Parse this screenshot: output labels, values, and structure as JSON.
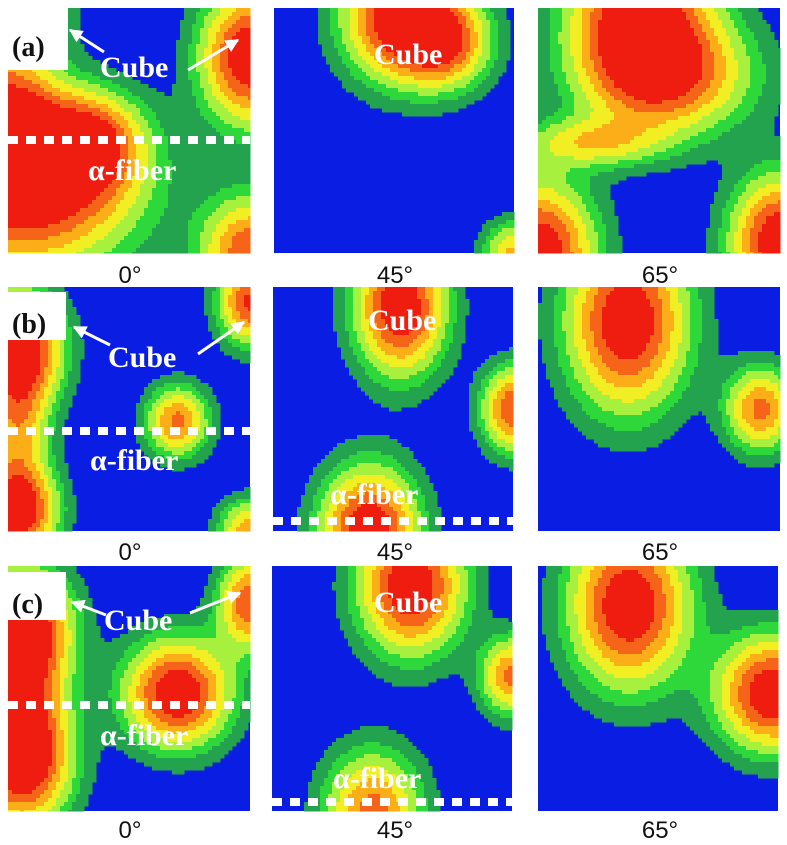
{
  "chart_data": {
    "type": "heatmap",
    "colormap": [
      "#0a1de3",
      "#23a34e",
      "#2fd83a",
      "#a7f03d",
      "#f2ee24",
      "#fbae18",
      "#f6641a",
      "#ef1c10"
    ],
    "rows": [
      {
        "label": "(a)",
        "cube_label": "Cube",
        "fiber_label": "α-fiber",
        "sections": [
          {
            "angle": "0°",
            "peaks": [
              {
                "cx": 0.05,
                "cy": 0.76,
                "sx": 0.32,
                "sy": 0.22,
                "amp": 1.0
              },
              {
                "cx": 0.32,
                "cy": 0.55,
                "sx": 0.16,
                "sy": 0.14,
                "amp": 0.82
              },
              {
                "cx": 0.0,
                "cy": 0.4,
                "sx": 0.14,
                "sy": 0.14,
                "amp": 0.7
              },
              {
                "cx": 0.0,
                "cy": 0.0,
                "sx": 0.16,
                "sy": 0.16,
                "amp": 0.55
              },
              {
                "cx": 1.0,
                "cy": 0.2,
                "sx": 0.14,
                "sy": 0.19,
                "amp": 1.0
              },
              {
                "cx": 1.0,
                "cy": 1.0,
                "sx": 0.14,
                "sy": 0.16,
                "amp": 0.8
              }
            ]
          },
          {
            "angle": "45°",
            "peaks": [
              {
                "cx": 0.52,
                "cy": 0.03,
                "sx": 0.16,
                "sy": 0.18,
                "amp": 1.0
              },
              {
                "cx": 0.72,
                "cy": 0.14,
                "sx": 0.13,
                "sy": 0.13,
                "amp": 0.7
              },
              {
                "cx": 1.0,
                "cy": 1.0,
                "sx": 0.09,
                "sy": 0.09,
                "amp": 0.58
              }
            ]
          },
          {
            "angle": "65°",
            "peaks": [
              {
                "cx": 0.42,
                "cy": 0.02,
                "sx": 0.2,
                "sy": 0.24,
                "amp": 1.0
              },
              {
                "cx": 0.55,
                "cy": 0.28,
                "sx": 0.24,
                "sy": 0.16,
                "amp": 0.66
              },
              {
                "cx": 0.22,
                "cy": 0.55,
                "sx": 0.2,
                "sy": 0.07,
                "amp": 0.45
              },
              {
                "cx": 0.0,
                "cy": 1.0,
                "sx": 0.16,
                "sy": 0.2,
                "amp": 1.0
              },
              {
                "cx": 1.0,
                "cy": 0.95,
                "sx": 0.14,
                "sy": 0.18,
                "amp": 1.0
              }
            ]
          }
        ]
      },
      {
        "label": "(b)",
        "cube_label": "Cube",
        "fiber_label": "α-fiber",
        "sections": [
          {
            "angle": "0°",
            "peaks": [
              {
                "cx": 0.05,
                "cy": 0.25,
                "sx": 0.12,
                "sy": 0.16,
                "amp": 1.0
              },
              {
                "cx": 0.04,
                "cy": 0.92,
                "sx": 0.11,
                "sy": 0.13,
                "amp": 1.0
              },
              {
                "cx": 0.04,
                "cy": 0.58,
                "sx": 0.09,
                "sy": 0.18,
                "amp": 0.52
              },
              {
                "cx": 0.7,
                "cy": 0.55,
                "sx": 0.09,
                "sy": 0.1,
                "amp": 0.72
              },
              {
                "cx": 1.0,
                "cy": 0.06,
                "sx": 0.09,
                "sy": 0.12,
                "amp": 0.85
              },
              {
                "cx": 1.0,
                "cy": 1.0,
                "sx": 0.09,
                "sy": 0.09,
                "amp": 0.65
              }
            ]
          },
          {
            "angle": "45°",
            "peaks": [
              {
                "cx": 0.53,
                "cy": 0.08,
                "sx": 0.13,
                "sy": 0.19,
                "amp": 1.0
              },
              {
                "cx": 0.4,
                "cy": 1.0,
                "sx": 0.14,
                "sy": 0.18,
                "amp": 1.0
              },
              {
                "cx": 1.0,
                "cy": 0.5,
                "sx": 0.09,
                "sy": 0.12,
                "amp": 0.82
              }
            ]
          },
          {
            "angle": "65°",
            "peaks": [
              {
                "cx": 0.37,
                "cy": 0.14,
                "sx": 0.17,
                "sy": 0.25,
                "amp": 1.0
              },
              {
                "cx": 0.92,
                "cy": 0.5,
                "sx": 0.1,
                "sy": 0.12,
                "amp": 0.72
              }
            ]
          }
        ]
      },
      {
        "label": "(c)",
        "cube_label": "Cube",
        "fiber_label": "α-fiber",
        "sections": [
          {
            "angle": "0°",
            "peaks": [
              {
                "cx": 0.06,
                "cy": 0.25,
                "sx": 0.14,
                "sy": 0.16,
                "amp": 0.85
              },
              {
                "cx": 0.06,
                "cy": 0.8,
                "sx": 0.14,
                "sy": 0.18,
                "amp": 0.85
              },
              {
                "cx": 0.06,
                "cy": 0.52,
                "sx": 0.12,
                "sy": 0.26,
                "amp": 0.6
              },
              {
                "cx": 0.7,
                "cy": 0.52,
                "sx": 0.15,
                "sy": 0.15,
                "amp": 1.0
              },
              {
                "cx": 1.0,
                "cy": 0.15,
                "sx": 0.09,
                "sy": 0.13,
                "amp": 0.8
              }
            ]
          },
          {
            "angle": "45°",
            "peaks": [
              {
                "cx": 0.58,
                "cy": 0.08,
                "sx": 0.15,
                "sy": 0.19,
                "amp": 1.0
              },
              {
                "cx": 0.42,
                "cy": 1.0,
                "sx": 0.14,
                "sy": 0.17,
                "amp": 0.74
              },
              {
                "cx": 1.0,
                "cy": 0.45,
                "sx": 0.09,
                "sy": 0.11,
                "amp": 0.72
              }
            ]
          },
          {
            "angle": "65°",
            "peaks": [
              {
                "cx": 0.38,
                "cy": 0.16,
                "sx": 0.17,
                "sy": 0.23,
                "amp": 1.0
              },
              {
                "cx": 0.98,
                "cy": 0.52,
                "sx": 0.16,
                "sy": 0.16,
                "amp": 1.0
              }
            ]
          }
        ]
      }
    ]
  }
}
